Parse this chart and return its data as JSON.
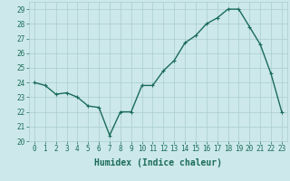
{
  "x": [
    0,
    1,
    2,
    3,
    4,
    5,
    6,
    7,
    8,
    9,
    10,
    11,
    12,
    13,
    14,
    15,
    16,
    17,
    18,
    19,
    20,
    21,
    22,
    23
  ],
  "y": [
    24.0,
    23.8,
    23.2,
    23.3,
    23.0,
    22.4,
    22.3,
    20.4,
    22.0,
    22.0,
    23.8,
    23.8,
    24.8,
    25.5,
    26.7,
    27.2,
    28.0,
    28.4,
    29.0,
    29.0,
    27.8,
    26.6,
    24.6,
    22.0
  ],
  "line_color": "#1a6b5a",
  "marker": "+",
  "marker_size": 3,
  "bg_color": "#cce8ea",
  "grid_color": "#aaccce",
  "xlabel": "Humidex (Indice chaleur)",
  "ylim": [
    20,
    29.5
  ],
  "xlim": [
    -0.5,
    23.5
  ],
  "yticks": [
    20,
    21,
    22,
    23,
    24,
    25,
    26,
    27,
    28,
    29
  ],
  "xticks": [
    0,
    1,
    2,
    3,
    4,
    5,
    6,
    7,
    8,
    9,
    10,
    11,
    12,
    13,
    14,
    15,
    16,
    17,
    18,
    19,
    20,
    21,
    22,
    23
  ],
  "tick_label_color": "#1a6b5a",
  "xlabel_fontsize": 7,
  "tick_fontsize": 5.5,
  "line_width": 1.0
}
